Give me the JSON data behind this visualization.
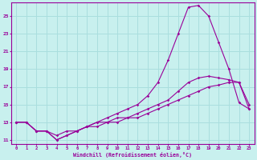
{
  "xlabel": "Windchill (Refroidissement éolien,°C)",
  "xlim": [
    -0.5,
    23.5
  ],
  "ylim": [
    10.5,
    26.5
  ],
  "yticks": [
    11,
    13,
    15,
    17,
    19,
    21,
    23,
    25
  ],
  "xticks": [
    0,
    1,
    2,
    3,
    4,
    5,
    6,
    7,
    8,
    9,
    10,
    11,
    12,
    13,
    14,
    15,
    16,
    17,
    18,
    19,
    20,
    21,
    22,
    23
  ],
  "background_color": "#c8f0ee",
  "grid_color": "#aadede",
  "line_color": "#990099",
  "line1_x": [
    0,
    1,
    2,
    3,
    4,
    5,
    6,
    7,
    8,
    9,
    10,
    11,
    12,
    13,
    14,
    15,
    16,
    17,
    18,
    19,
    20,
    21,
    22,
    23
  ],
  "line1_y": [
    13.0,
    13.0,
    12.0,
    12.0,
    11.0,
    11.5,
    12.0,
    12.5,
    13.0,
    13.5,
    14.0,
    14.5,
    15.0,
    16.0,
    17.5,
    20.0,
    23.0,
    26.0,
    26.2,
    25.0,
    22.0,
    19.0,
    15.2,
    14.5
  ],
  "line2_x": [
    0,
    1,
    2,
    3,
    4,
    5,
    6,
    7,
    8,
    9,
    10,
    11,
    12,
    13,
    14,
    15,
    16,
    17,
    18,
    19,
    20,
    21,
    22,
    23
  ],
  "line2_y": [
    13.0,
    13.0,
    12.0,
    12.0,
    11.0,
    11.5,
    12.0,
    12.5,
    13.0,
    13.0,
    13.5,
    13.5,
    14.0,
    14.5,
    15.0,
    15.5,
    16.5,
    17.5,
    18.0,
    18.2,
    18.0,
    17.8,
    17.5,
    15.0
  ],
  "line3_x": [
    0,
    1,
    2,
    3,
    4,
    5,
    6,
    7,
    8,
    9,
    10,
    11,
    12,
    13,
    14,
    15,
    16,
    17,
    18,
    19,
    20,
    21,
    22,
    23
  ],
  "line3_y": [
    13.0,
    13.0,
    12.0,
    12.0,
    11.5,
    12.0,
    12.0,
    12.5,
    12.5,
    13.0,
    13.0,
    13.5,
    13.5,
    14.0,
    14.5,
    15.0,
    15.5,
    16.0,
    16.5,
    17.0,
    17.2,
    17.5,
    17.5,
    14.5
  ]
}
